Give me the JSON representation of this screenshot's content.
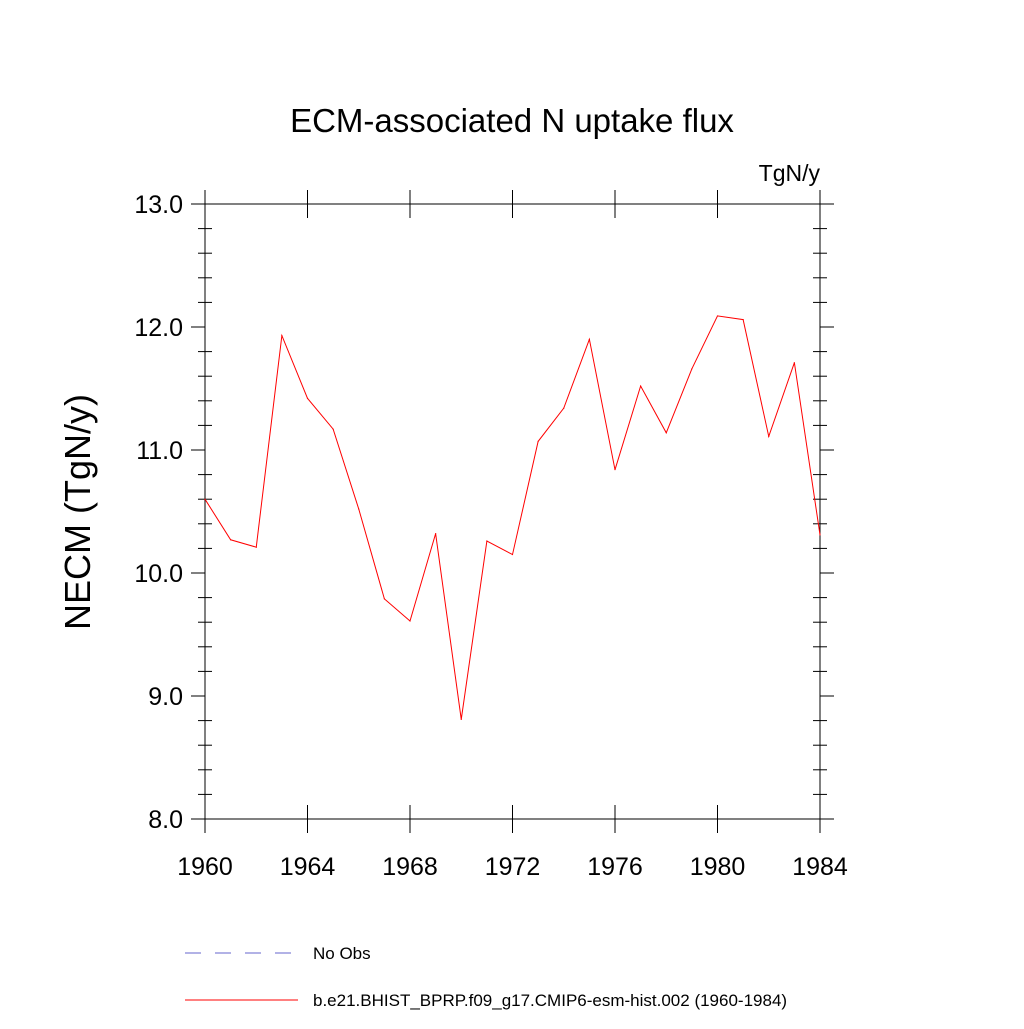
{
  "chart_data": {
    "type": "line",
    "title": "ECM-associated N uptake flux",
    "units": "TgN/y",
    "ylabel": "NECM  (TgN/y)",
    "xlabel": "",
    "xlim": [
      1960,
      1984
    ],
    "ylim": [
      8.0,
      13.0
    ],
    "x_ticks": [
      1960,
      1964,
      1968,
      1972,
      1976,
      1980,
      1984
    ],
    "x_tick_labels": [
      "1960",
      "1964",
      "1968",
      "1972",
      "1976",
      "1980",
      "1984"
    ],
    "y_ticks": [
      8.0,
      9.0,
      10.0,
      11.0,
      12.0,
      13.0
    ],
    "y_tick_labels": [
      "8.0",
      "9.0",
      "10.0",
      "11.0",
      "12.0",
      "13.0"
    ],
    "grid": false,
    "legend_position": "bottom",
    "series": [
      {
        "name": "b.e21.BHIST_BPRP.f09_g17.CMIP6-esm-hist.002 (1960-1984)",
        "color": "#ff0000",
        "style": "solid",
        "x": [
          1960,
          1961,
          1962,
          1963,
          1964,
          1965,
          1966,
          1967,
          1968,
          1969,
          1970,
          1971,
          1972,
          1973,
          1974,
          1975,
          1976,
          1977,
          1978,
          1979,
          1980,
          1981,
          1982,
          1983,
          1984
        ],
        "values": [
          10.6,
          10.27,
          10.21,
          11.93,
          11.42,
          11.17,
          10.52,
          9.79,
          9.61,
          10.32,
          8.81,
          10.26,
          10.15,
          11.07,
          11.34,
          11.9,
          10.84,
          11.52,
          11.14,
          11.66,
          12.09,
          12.06,
          11.11,
          11.71,
          10.31
        ]
      }
    ],
    "legend": [
      {
        "label": "No Obs",
        "color": "#6666cc",
        "style": "dashed"
      },
      {
        "label": "b.e21.BHIST_BPRP.f09_g17.CMIP6-esm-hist.002 (1960-1984)",
        "color": "#ff0000",
        "style": "solid"
      }
    ]
  }
}
